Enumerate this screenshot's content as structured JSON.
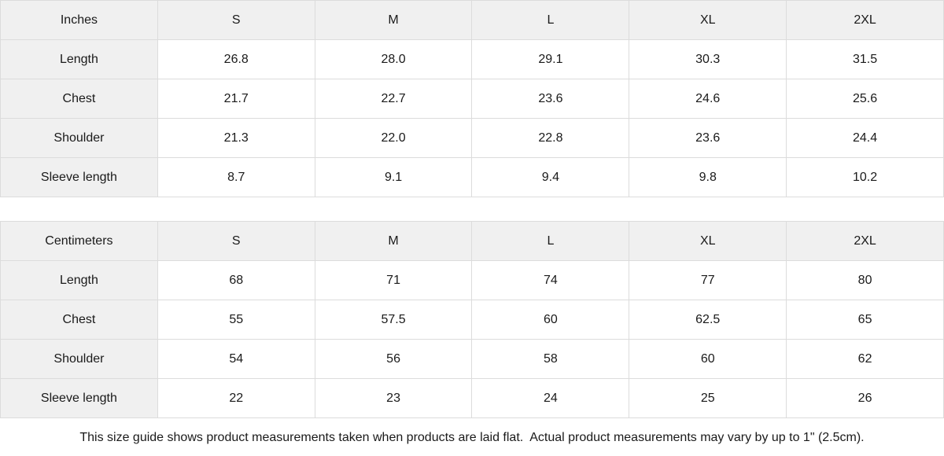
{
  "tables": [
    {
      "unit_label": "Inches",
      "columns": [
        "S",
        "M",
        "L",
        "XL",
        "2XL"
      ],
      "rows": [
        {
          "label": "Length",
          "values": [
            "26.8",
            "28.0",
            "29.1",
            "30.3",
            "31.5"
          ]
        },
        {
          "label": "Chest",
          "values": [
            "21.7",
            "22.7",
            "23.6",
            "24.6",
            "25.6"
          ]
        },
        {
          "label": "Shoulder",
          "values": [
            "21.3",
            "22.0",
            "22.8",
            "23.6",
            "24.4"
          ]
        },
        {
          "label": "Sleeve length",
          "values": [
            "8.7",
            "9.1",
            "9.4",
            "9.8",
            "10.2"
          ]
        }
      ]
    },
    {
      "unit_label": "Centimeters",
      "columns": [
        "S",
        "M",
        "L",
        "XL",
        "2XL"
      ],
      "rows": [
        {
          "label": "Length",
          "values": [
            "68",
            "71",
            "74",
            "77",
            "80"
          ]
        },
        {
          "label": "Chest",
          "values": [
            "55",
            "57.5",
            "60",
            "62.5",
            "65"
          ]
        },
        {
          "label": "Shoulder",
          "values": [
            "54",
            "56",
            "58",
            "60",
            "62"
          ]
        },
        {
          "label": "Sleeve length",
          "values": [
            "22",
            "23",
            "24",
            "25",
            "26"
          ]
        }
      ]
    }
  ],
  "footer": {
    "note": "This size guide shows product measurements taken when products are laid flat.  Actual product measurements may vary by up to 1\" (2.5cm)."
  },
  "colors": {
    "cell_bg": "#f0f0f0",
    "border": "#dcdcdc",
    "text": "#1a1a1a",
    "background": "#ffffff"
  }
}
